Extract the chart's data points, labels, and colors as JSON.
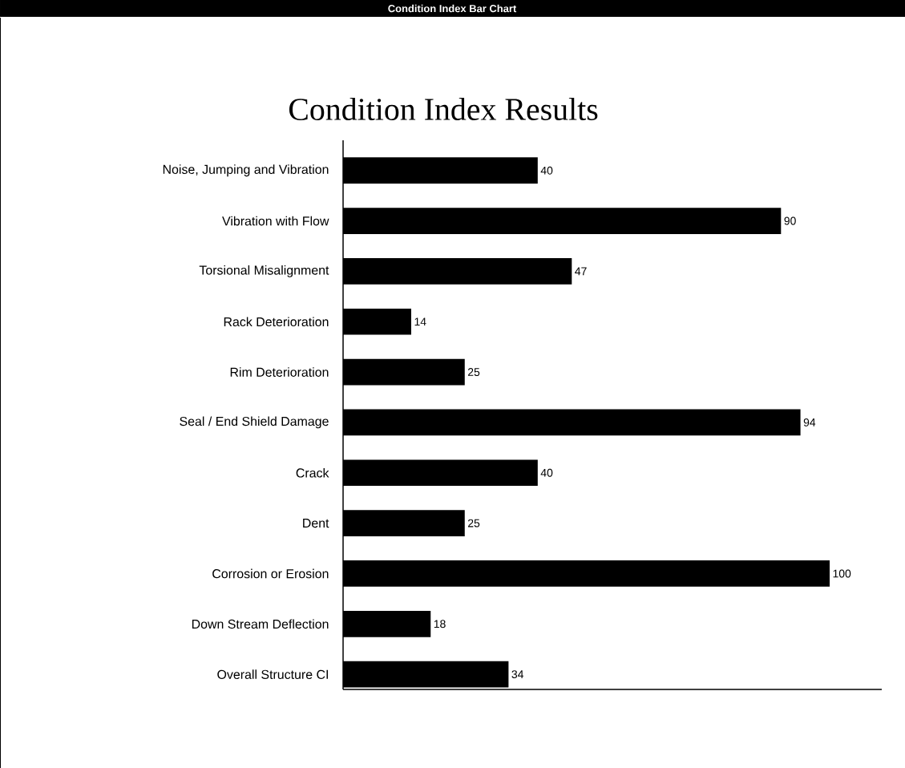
{
  "chart_data": {
    "type": "bar",
    "orientation": "horizontal",
    "title": "Condition Index Results",
    "annotations": [
      "Condition Index Bar Chart"
    ],
    "categories": [
      "Noise, Jumping and Vibration",
      "Vibration with Flow",
      "Torsional Misalignment",
      "Rack Deterioration",
      "Rim Deterioration",
      "Seal / End Shield Damage",
      "Crack",
      "Dent",
      "Corrosion or Erosion",
      "Down Stream Deflection",
      "Overall Structure CI"
    ],
    "values": [
      40,
      90,
      47,
      14,
      25,
      94,
      40,
      25,
      100,
      18,
      34
    ],
    "color": "#000000",
    "data_labels": true,
    "grid": false
  }
}
